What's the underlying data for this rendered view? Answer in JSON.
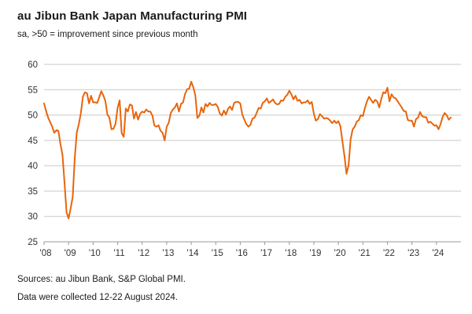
{
  "chart": {
    "title": "au Jibun Bank Japan Manufacturing PMI",
    "subtitle": "sa, >50 = improvement since previous month",
    "source_line1": "Sources: au Jibun Bank, S&P Global PMI.",
    "source_line2": "Data were collected 12-22 August 2024."
  },
  "chart_data": {
    "type": "line",
    "title": "au Jibun Bank Japan Manufacturing PMI",
    "subtitle": "sa, >50 = improvement since previous month",
    "frequency": "monthly",
    "x_start": "2008-01",
    "x_end": "2024-08",
    "ylim": [
      25,
      60
    ],
    "y_ticks": [
      25,
      30,
      35,
      40,
      45,
      50,
      55,
      60
    ],
    "x_tick_labels": [
      "'08",
      "'09",
      "'10",
      "'11",
      "'12",
      "'13",
      "'14",
      "'15",
      "'16",
      "'17",
      "'18",
      "'19",
      "'20",
      "'21",
      "'22",
      "'23",
      "'24"
    ],
    "grid": "horizontal",
    "legend": "none",
    "line_color": "#e8650c",
    "grid_color": "#c9c9c9",
    "axis_color": "#999999",
    "tick_label_color": "#333333",
    "series": [
      {
        "name": "Japan Manufacturing PMI (sa)",
        "values": [
          52.3,
          50.8,
          49.5,
          48.6,
          47.7,
          46.5,
          47.0,
          46.9,
          44.3,
          42.2,
          36.7,
          30.8,
          29.6,
          31.6,
          33.8,
          41.4,
          46.6,
          48.2,
          50.4,
          53.6,
          54.5,
          54.3,
          52.3,
          53.8,
          52.5,
          52.5,
          52.4,
          53.5,
          54.7,
          53.9,
          52.8,
          50.1,
          49.5,
          47.2,
          47.3,
          48.3,
          51.4,
          52.9,
          46.4,
          45.7,
          51.3,
          50.7,
          52.1,
          51.9,
          49.3,
          50.6,
          49.1,
          50.2,
          50.7,
          50.5,
          51.1,
          50.7,
          50.7,
          49.9,
          47.9,
          47.7,
          48.0,
          46.9,
          46.5,
          45.0,
          47.7,
          48.5,
          50.4,
          51.1,
          51.5,
          52.3,
          50.7,
          52.2,
          52.5,
          54.2,
          55.1,
          55.2,
          56.6,
          55.5,
          53.9,
          49.4,
          49.9,
          51.5,
          50.5,
          52.2,
          51.7,
          52.4,
          52.0,
          52.0,
          52.2,
          51.6,
          50.3,
          49.9,
          50.9,
          50.1,
          51.2,
          51.7,
          51.0,
          52.4,
          52.6,
          52.6,
          52.3,
          50.1,
          49.1,
          48.2,
          47.7,
          48.1,
          49.3,
          49.5,
          50.4,
          51.4,
          51.3,
          52.4,
          52.7,
          53.3,
          52.4,
          52.7,
          53.1,
          52.4,
          52.1,
          52.2,
          52.9,
          52.8,
          53.6,
          54.0,
          54.8,
          54.1,
          53.1,
          53.8,
          52.8,
          53.0,
          52.3,
          52.5,
          52.5,
          52.9,
          52.2,
          52.6,
          50.3,
          48.9,
          49.2,
          50.2,
          49.8,
          49.3,
          49.4,
          49.3,
          48.9,
          48.4,
          48.9,
          48.4,
          48.8,
          47.8,
          44.8,
          41.9,
          38.4,
          40.1,
          45.2,
          47.2,
          47.7,
          48.7,
          49.0,
          50.0,
          49.8,
          51.4,
          52.7,
          53.6,
          53.0,
          52.4,
          53.0,
          52.7,
          51.5,
          53.2,
          54.5,
          54.3,
          55.4,
          52.7,
          54.1,
          53.5,
          53.3,
          52.7,
          52.1,
          51.5,
          50.8,
          50.7,
          49.0,
          48.9,
          48.9,
          47.7,
          49.2,
          49.5,
          50.6,
          49.8,
          49.6,
          49.6,
          48.5,
          48.7,
          48.3,
          47.9,
          48.0,
          47.2,
          48.2,
          49.6,
          50.4,
          50.0,
          49.1,
          49.5
        ]
      }
    ]
  }
}
